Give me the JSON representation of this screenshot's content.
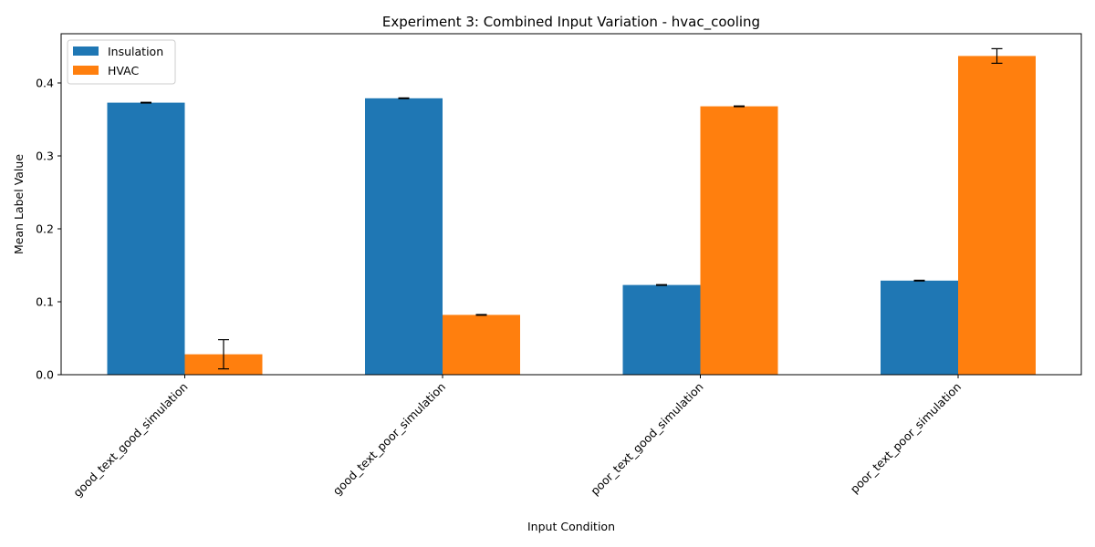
{
  "chart_data": {
    "type": "bar",
    "title": "Experiment 3: Combined Input Variation - hvac_cooling",
    "xlabel": "Input Condition",
    "ylabel": "Mean Label Value",
    "categories": [
      "good_text_good_simulation",
      "good_text_poor_simulation",
      "poor_text_good_simulation",
      "poor_text_poor_simulation"
    ],
    "series": [
      {
        "name": "Insulation",
        "color": "#1f77b4",
        "values": [
          0.373,
          0.379,
          0.123,
          0.129
        ],
        "errors": [
          0.0005,
          0.0005,
          0.0005,
          0.0005
        ]
      },
      {
        "name": "HVAC",
        "color": "#ff7f0e",
        "values": [
          0.028,
          0.082,
          0.368,
          0.437
        ],
        "errors": [
          0.02,
          0.0005,
          0.0005,
          0.01
        ]
      }
    ],
    "ylim": [
      0,
      0.4675
    ],
    "yticks": [
      "0.0",
      "0.1",
      "0.2",
      "0.3",
      "0.4"
    ],
    "grid": false,
    "legend": "top-left"
  }
}
